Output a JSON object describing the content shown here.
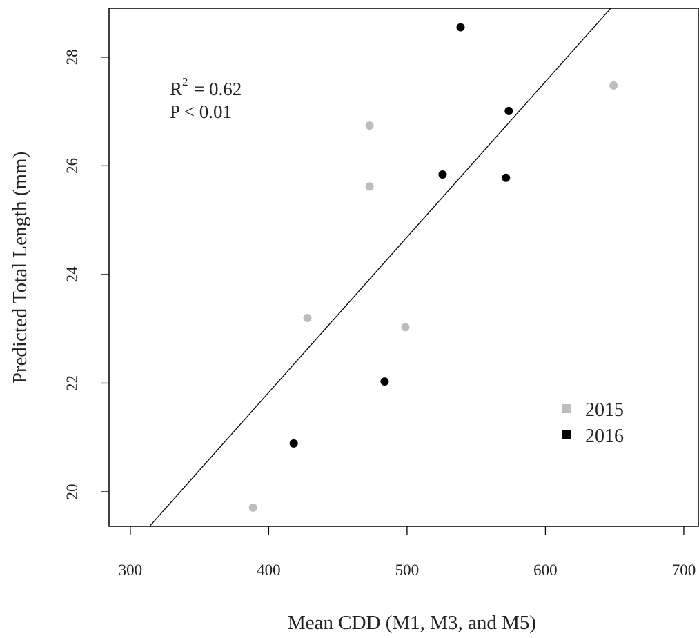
{
  "chart_data": {
    "type": "scatter",
    "x_label": "Mean CDD (M1, M3, and M5)",
    "y_label": "Predicted Total Length (mm)",
    "xlim": [
      284.6,
      710.5
    ],
    "ylim": [
      19.365,
      28.9
    ],
    "xticks": [
      300,
      400,
      500,
      600,
      700
    ],
    "yticks": [
      20,
      22,
      24,
      26,
      28
    ],
    "legend": "bottom-right",
    "series": [
      {
        "name": "2015",
        "color": "#bdbdbd",
        "x": [
          388.7,
          428.0,
          472.9,
          472.9,
          498.8,
          649.2
        ],
        "values": [
          19.71,
          23.2,
          26.74,
          25.62,
          23.03,
          27.48
        ]
      },
      {
        "name": "2016",
        "color": "#000000",
        "x": [
          418.1,
          483.8,
          525.7,
          538.7,
          571.5,
          573.5
        ],
        "values": [
          20.89,
          22.03,
          25.84,
          28.55,
          25.78,
          27.01
        ]
      }
    ],
    "fit_line": {
      "color": "#000000",
      "x": [
        313.9,
        647.2
      ],
      "values": [
        19.365,
        28.9
      ]
    },
    "annotation": {
      "r_label": "R",
      "r_sup": "2",
      "r_value": "= 0.62",
      "p_value": "P < 0.01"
    }
  }
}
